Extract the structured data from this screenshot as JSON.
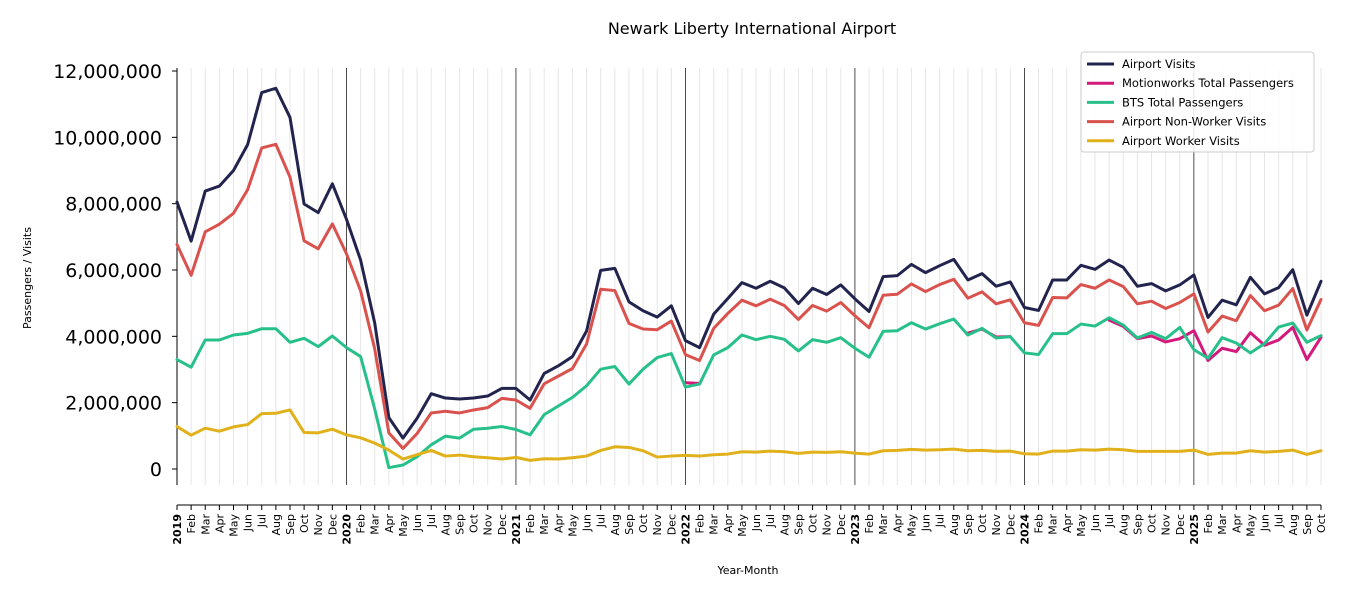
{
  "chart_data": {
    "type": "line",
    "title": "Newark Liberty International Airport",
    "xlabel": "Year-Month",
    "ylabel": "Passengers / Visits",
    "ylim": [
      -500000,
      12000000
    ],
    "yticks": [
      0,
      2000000,
      4000000,
      6000000,
      8000000,
      10000000,
      12000000
    ],
    "ytick_labels": [
      "0",
      "2,000,000",
      "4,000,000",
      "6,000,000",
      "8,000,000",
      "10,000,000",
      "12,000,000"
    ],
    "grid": "vertical monthly",
    "legend_position": "top-right",
    "x": [
      "2019-01",
      "2019-02",
      "2019-03",
      "2019-04",
      "2019-05",
      "2019-06",
      "2019-07",
      "2019-08",
      "2019-09",
      "2019-10",
      "2019-11",
      "2019-12",
      "2020-01",
      "2020-02",
      "2020-03",
      "2020-04",
      "2020-05",
      "2020-06",
      "2020-07",
      "2020-08",
      "2020-09",
      "2020-10",
      "2020-11",
      "2020-12",
      "2021-01",
      "2021-02",
      "2021-03",
      "2021-04",
      "2021-05",
      "2021-06",
      "2021-07",
      "2021-08",
      "2021-09",
      "2021-10",
      "2021-11",
      "2021-12",
      "2022-01",
      "2022-02",
      "2022-03",
      "2022-04",
      "2022-05",
      "2022-06",
      "2022-07",
      "2022-08",
      "2022-09",
      "2022-10",
      "2022-11",
      "2022-12",
      "2023-01",
      "2023-02",
      "2023-03",
      "2023-04",
      "2023-05",
      "2023-06",
      "2023-07",
      "2023-08",
      "2023-09",
      "2023-10",
      "2023-11",
      "2023-12",
      "2024-01",
      "2024-02",
      "2024-03",
      "2024-04",
      "2024-05",
      "2024-06",
      "2024-07",
      "2024-08",
      "2024-09",
      "2024-10",
      "2024-11",
      "2024-12",
      "2025-01",
      "2025-02",
      "2025-03",
      "2025-04",
      "2025-05",
      "2025-06",
      "2025-07",
      "2025-08",
      "2025-09",
      "2025-10"
    ],
    "x_tick_labels": [
      "2019",
      "Feb",
      "Mar",
      "Apr",
      "May",
      "Jun",
      "Jul",
      "Aug",
      "Sep",
      "Oct",
      "Nov",
      "Dec",
      "2020",
      "Feb",
      "Mar",
      "Apr",
      "May",
      "Jun",
      "Jul",
      "Aug",
      "Sep",
      "Oct",
      "Nov",
      "Dec",
      "2021",
      "Feb",
      "Mar",
      "Apr",
      "May",
      "Jun",
      "Jul",
      "Aug",
      "Sep",
      "Oct",
      "Nov",
      "Dec",
      "2022",
      "Feb",
      "Mar",
      "Apr",
      "May",
      "Jun",
      "Jul",
      "Aug",
      "Sep",
      "Oct",
      "Nov",
      "Dec",
      "2023",
      "Feb",
      "Mar",
      "Apr",
      "May",
      "Jun",
      "Jul",
      "Aug",
      "Sep",
      "Oct",
      "Nov",
      "Dec",
      "2024",
      "Feb",
      "Mar",
      "Apr",
      "May",
      "Jun",
      "Jul",
      "Aug",
      "Sep",
      "Oct",
      "Nov",
      "Dec",
      "2025",
      "Feb",
      "Mar",
      "Apr",
      "May",
      "Jun",
      "Jul",
      "Aug",
      "Sep",
      "Oct"
    ],
    "series": [
      {
        "name": "Airport Visits",
        "color": "#22244e",
        "values": [
          8050000,
          6870000,
          8380000,
          8530000,
          9000000,
          9780000,
          11350000,
          11480000,
          10600000,
          7990000,
          7730000,
          8600000,
          7530000,
          6300000,
          4400000,
          1550000,
          930000,
          1530000,
          2270000,
          2140000,
          2110000,
          2140000,
          2200000,
          2430000,
          2430000,
          2080000,
          2880000,
          3110000,
          3390000,
          4160000,
          5990000,
          6050000,
          5040000,
          4770000,
          4580000,
          4920000,
          3870000,
          3660000,
          4670000,
          5140000,
          5620000,
          5450000,
          5660000,
          5460000,
          4990000,
          5450000,
          5260000,
          5550000,
          5130000,
          4750000,
          5800000,
          5830000,
          6170000,
          5920000,
          6130000,
          6320000,
          5700000,
          5890000,
          5510000,
          5640000,
          4870000,
          4780000,
          5700000,
          5700000,
          6140000,
          6020000,
          6300000,
          6080000,
          5510000,
          5590000,
          5370000,
          5550000,
          5850000,
          4570000,
          5090000,
          4950000,
          5780000,
          5280000,
          5470000,
          6010000,
          4640000,
          5660000
        ]
      },
      {
        "name": "Motionworks Total Passengers",
        "color": "#d4197c",
        "values": [
          null,
          null,
          null,
          null,
          null,
          null,
          null,
          null,
          null,
          null,
          null,
          null,
          null,
          null,
          null,
          null,
          null,
          null,
          null,
          null,
          null,
          null,
          null,
          null,
          null,
          null,
          null,
          null,
          null,
          null,
          null,
          null,
          null,
          null,
          null,
          null,
          2600000,
          2580000,
          null,
          null,
          null,
          null,
          null,
          null,
          null,
          null,
          null,
          null,
          null,
          null,
          null,
          null,
          null,
          null,
          null,
          null,
          4100000,
          4220000,
          3980000,
          3990000,
          null,
          null,
          null,
          null,
          null,
          null,
          4490000,
          4300000,
          3930000,
          4010000,
          3830000,
          3930000,
          4170000,
          3270000,
          3640000,
          3540000,
          4110000,
          3730000,
          3890000,
          4270000,
          3300000,
          3970000
        ]
      },
      {
        "name": "BTS Total Passengers",
        "color": "#27c08a",
        "values": [
          3300000,
          3070000,
          3890000,
          3890000,
          4040000,
          4090000,
          4230000,
          4230000,
          3820000,
          3940000,
          3690000,
          4010000,
          3660000,
          3390000,
          1810000,
          40000,
          120000,
          370000,
          730000,
          990000,
          930000,
          1200000,
          1230000,
          1280000,
          1190000,
          1030000,
          1640000,
          1900000,
          2160000,
          2510000,
          3010000,
          3090000,
          2560000,
          3010000,
          3360000,
          3480000,
          2470000,
          2560000,
          3440000,
          3660000,
          4040000,
          3900000,
          4000000,
          3910000,
          3560000,
          3900000,
          3820000,
          3960000,
          3640000,
          3370000,
          4150000,
          4170000,
          4410000,
          4220000,
          4380000,
          4520000,
          4040000,
          4240000,
          3950000,
          3990000,
          3500000,
          3450000,
          4080000,
          4080000,
          4370000,
          4310000,
          4560000,
          4340000,
          3950000,
          4120000,
          3930000,
          4270000,
          3600000,
          3340000,
          3960000,
          3800000,
          3500000,
          3780000,
          4280000,
          4400000,
          3820000,
          4020000
        ]
      },
      {
        "name": "Airport Non-Worker Visits",
        "color": "#d9524d",
        "values": [
          6770000,
          5840000,
          7150000,
          7380000,
          7710000,
          8420000,
          9680000,
          9790000,
          8800000,
          6880000,
          6640000,
          7390000,
          6490000,
          5370000,
          3620000,
          1090000,
          620000,
          1070000,
          1690000,
          1740000,
          1690000,
          1780000,
          1850000,
          2130000,
          2080000,
          1830000,
          2570000,
          2800000,
          3030000,
          3770000,
          5420000,
          5380000,
          4390000,
          4220000,
          4200000,
          4460000,
          3450000,
          3270000,
          4240000,
          4690000,
          5090000,
          4920000,
          5120000,
          4930000,
          4510000,
          4930000,
          4760000,
          5020000,
          4620000,
          4260000,
          5240000,
          5270000,
          5580000,
          5350000,
          5560000,
          5720000,
          5150000,
          5340000,
          4980000,
          5100000,
          4410000,
          4330000,
          5170000,
          5160000,
          5560000,
          5450000,
          5700000,
          5500000,
          4980000,
          5060000,
          4840000,
          5020000,
          5280000,
          4130000,
          4610000,
          4470000,
          5230000,
          4770000,
          4940000,
          5440000,
          4190000,
          5110000
        ]
      },
      {
        "name": "Airport Worker Visits",
        "color": "#e0b11a",
        "values": [
          1280000,
          1020000,
          1230000,
          1140000,
          1270000,
          1340000,
          1670000,
          1680000,
          1780000,
          1100000,
          1090000,
          1200000,
          1030000,
          940000,
          780000,
          570000,
          300000,
          430000,
          560000,
          390000,
          420000,
          370000,
          340000,
          300000,
          350000,
          260000,
          310000,
          300000,
          340000,
          390000,
          560000,
          670000,
          650000,
          550000,
          360000,
          390000,
          410000,
          390000,
          430000,
          450000,
          520000,
          510000,
          540000,
          520000,
          470000,
          510000,
          500000,
          520000,
          480000,
          450000,
          550000,
          560000,
          590000,
          570000,
          580000,
          600000,
          550000,
          560000,
          530000,
          540000,
          460000,
          450000,
          540000,
          540000,
          580000,
          570000,
          600000,
          580000,
          530000,
          530000,
          530000,
          530000,
          570000,
          440000,
          480000,
          480000,
          550000,
          510000,
          530000,
          570000,
          440000,
          550000
        ]
      }
    ]
  }
}
